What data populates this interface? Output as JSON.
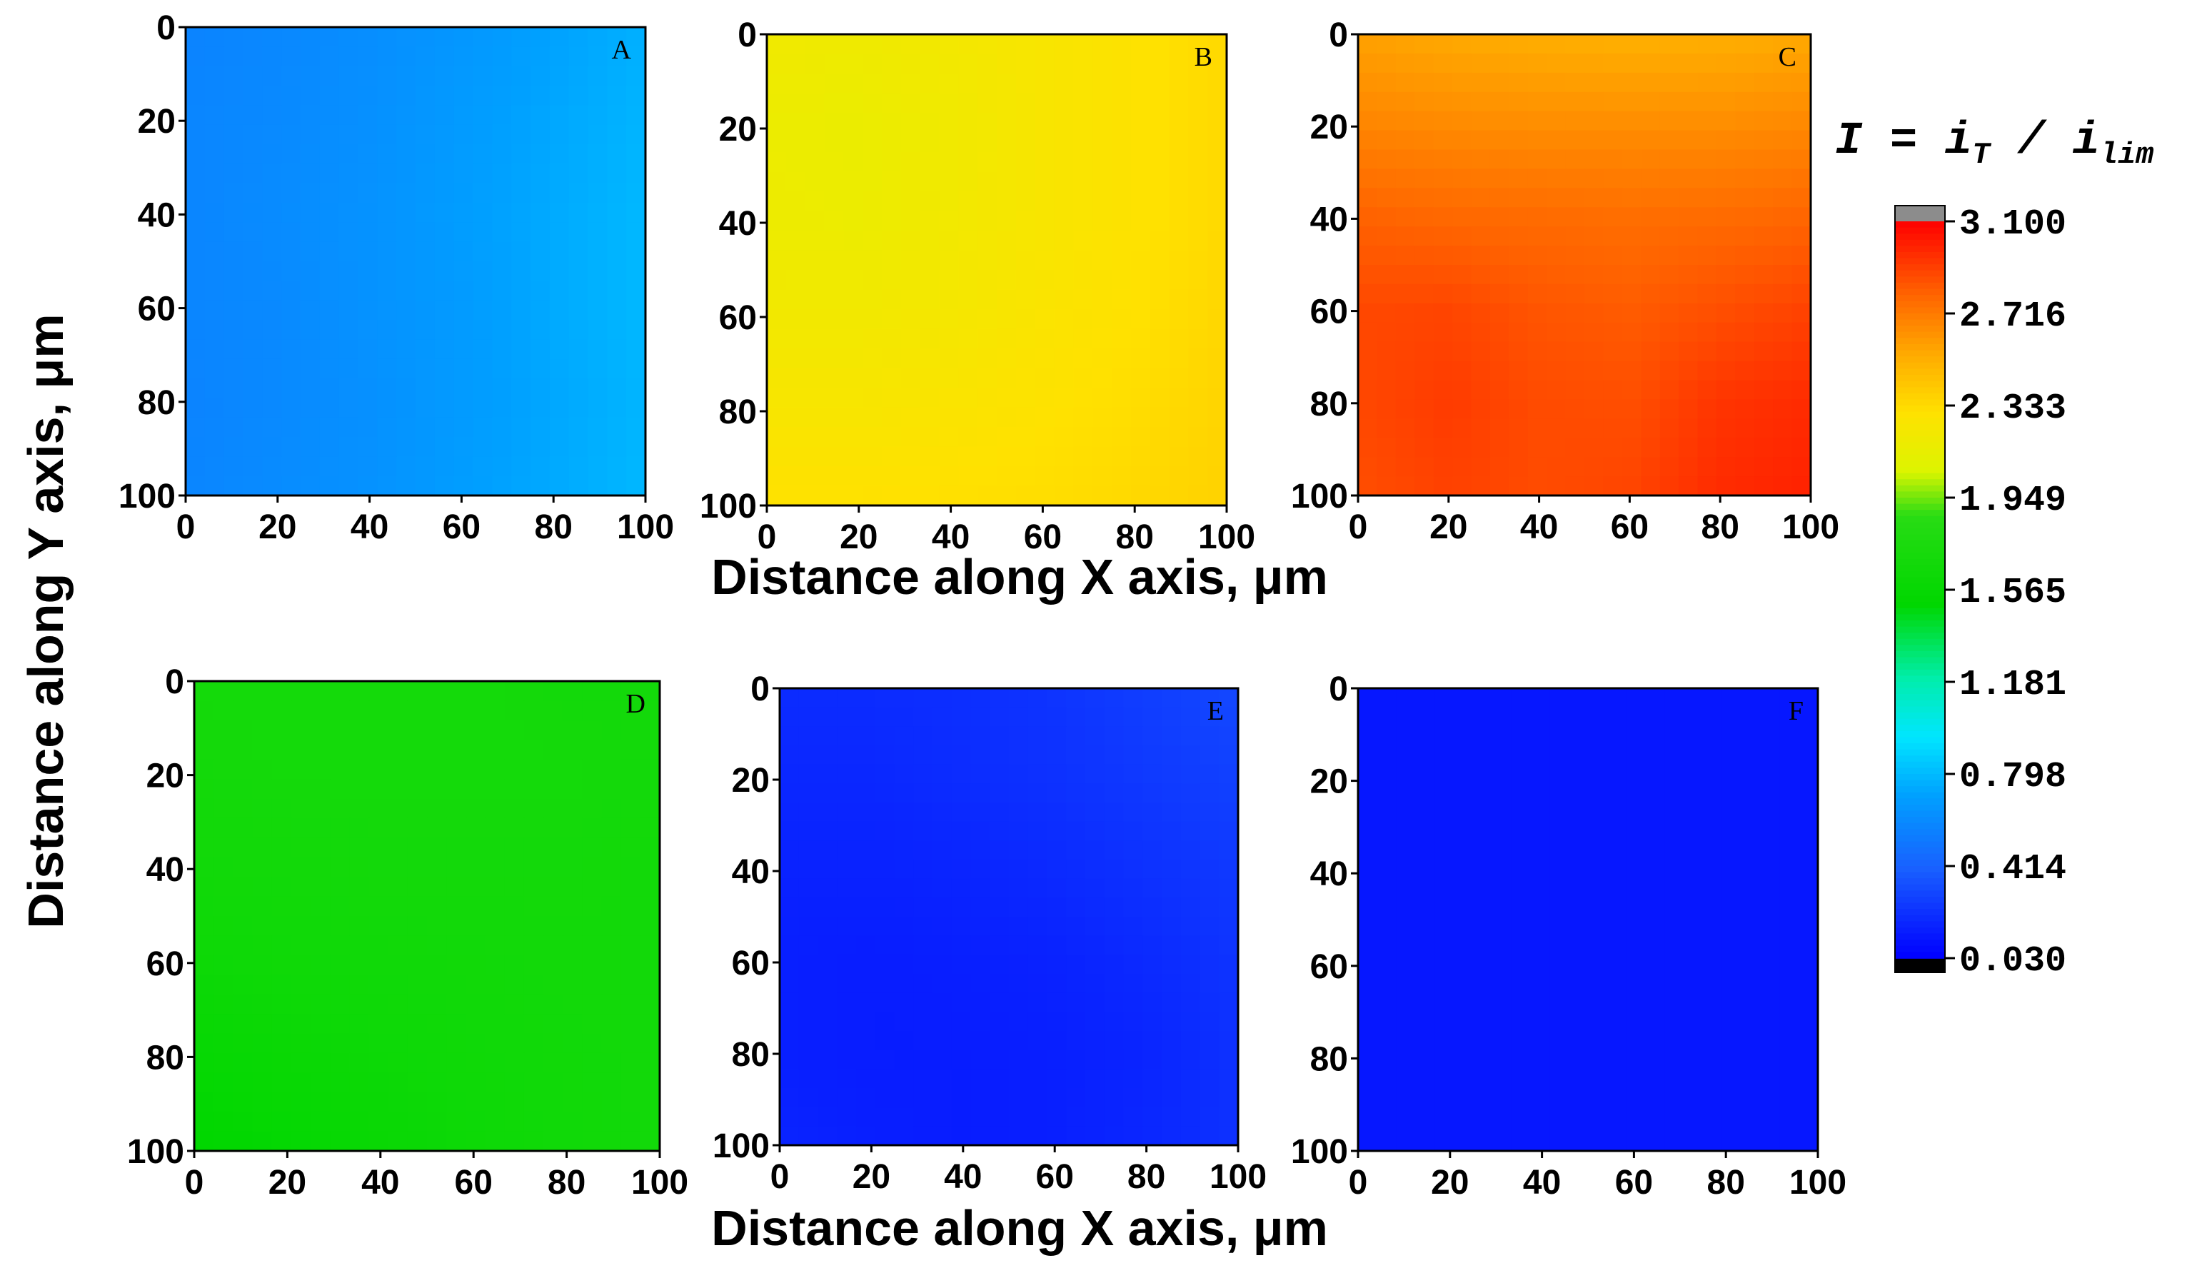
{
  "chart_data": {
    "type": "heatmap",
    "xlabel": "Distance along X axis, μm",
    "ylabel": "Distance along Y axis, μm",
    "x_ticks": [
      "0",
      "20",
      "40",
      "60",
      "80",
      "100"
    ],
    "y_ticks": [
      "0",
      "20",
      "40",
      "60",
      "80",
      "100"
    ],
    "x_range": [
      0,
      100
    ],
    "y_range": [
      0,
      100
    ],
    "colorbar": {
      "title": "I = iT / ilim",
      "title_parts": [
        "I",
        " = ",
        "i",
        "T",
        " / ",
        "i",
        "lim"
      ],
      "range": [
        0.03,
        3.1
      ],
      "ticks": [
        "3.100",
        "2.716",
        "2.333",
        "1.949",
        "1.565",
        "1.181",
        "0.798",
        "0.414",
        "0.030"
      ],
      "over_color": "#8c8c8c",
      "under_color": "#000000"
    },
    "panels": [
      {
        "label": "A",
        "description": "I increases along X from ~0.60 at x=0 to ~0.80 at x=100, with slightly uneven contour boundaries",
        "grid": [
          [
            0.57,
            0.59,
            0.62,
            0.66,
            0.71,
            0.76
          ],
          [
            0.58,
            0.6,
            0.63,
            0.68,
            0.73,
            0.78
          ],
          [
            0.58,
            0.61,
            0.64,
            0.69,
            0.74,
            0.79
          ],
          [
            0.58,
            0.6,
            0.64,
            0.68,
            0.74,
            0.79
          ],
          [
            0.57,
            0.6,
            0.63,
            0.68,
            0.73,
            0.78
          ],
          [
            0.58,
            0.61,
            0.64,
            0.69,
            0.74,
            0.79
          ]
        ]
      },
      {
        "label": "B",
        "description": "I ranges ~2.15 near (10,35) up to ~2.40 along the right and bottom edges",
        "grid": [
          [
            2.2,
            2.19,
            2.22,
            2.25,
            2.29,
            2.34
          ],
          [
            2.17,
            2.16,
            2.2,
            2.25,
            2.29,
            2.34
          ],
          [
            2.18,
            2.17,
            2.21,
            2.25,
            2.29,
            2.34
          ],
          [
            2.21,
            2.21,
            2.23,
            2.27,
            2.3,
            2.35
          ],
          [
            2.25,
            2.25,
            2.27,
            2.29,
            2.32,
            2.36
          ],
          [
            2.3,
            2.3,
            2.31,
            2.32,
            2.34,
            2.37
          ]
        ]
      },
      {
        "label": "C",
        "description": "I ranges ~2.50 along the top edge to ~3.00 in the lower right",
        "grid": [
          [
            2.58,
            2.55,
            2.53,
            2.52,
            2.53,
            2.55
          ],
          [
            2.68,
            2.66,
            2.65,
            2.65,
            2.65,
            2.67
          ],
          [
            2.8,
            2.78,
            2.77,
            2.76,
            2.77,
            2.79
          ],
          [
            2.88,
            2.89,
            2.84,
            2.82,
            2.86,
            2.9
          ],
          [
            2.88,
            2.92,
            2.87,
            2.86,
            2.94,
            2.97
          ],
          [
            2.86,
            2.9,
            2.87,
            2.89,
            2.97,
            3.0
          ]
        ]
      },
      {
        "label": "D",
        "description": "I ranges ~1.68 in the upper region to ~1.50 along the bottom-left edge",
        "grid": [
          [
            1.69,
            1.69,
            1.69,
            1.69,
            1.68,
            1.68
          ],
          [
            1.68,
            1.69,
            1.69,
            1.69,
            1.69,
            1.68
          ],
          [
            1.66,
            1.67,
            1.68,
            1.68,
            1.68,
            1.67
          ],
          [
            1.62,
            1.64,
            1.65,
            1.66,
            1.67,
            1.67
          ],
          [
            1.56,
            1.59,
            1.62,
            1.64,
            1.66,
            1.67
          ],
          [
            1.5,
            1.54,
            1.58,
            1.62,
            1.65,
            1.67
          ]
        ]
      },
      {
        "label": "E",
        "description": "I ranges ~0.13 near the bottom-center to ~0.30 at the top-right corner",
        "grid": [
          [
            0.2,
            0.2,
            0.21,
            0.23,
            0.27,
            0.31
          ],
          [
            0.18,
            0.18,
            0.2,
            0.22,
            0.25,
            0.28
          ],
          [
            0.16,
            0.16,
            0.17,
            0.19,
            0.22,
            0.25
          ],
          [
            0.15,
            0.14,
            0.15,
            0.16,
            0.19,
            0.23
          ],
          [
            0.15,
            0.14,
            0.14,
            0.15,
            0.17,
            0.22
          ],
          [
            0.17,
            0.15,
            0.14,
            0.15,
            0.18,
            0.22
          ]
        ]
      },
      {
        "label": "F",
        "description": "I nearly uniform at ~0.12 across the entire scan area",
        "grid": [
          [
            0.12,
            0.12,
            0.12,
            0.12,
            0.12,
            0.12
          ],
          [
            0.12,
            0.12,
            0.12,
            0.12,
            0.12,
            0.12
          ],
          [
            0.12,
            0.12,
            0.12,
            0.12,
            0.12,
            0.12
          ],
          [
            0.12,
            0.12,
            0.12,
            0.12,
            0.12,
            0.12
          ],
          [
            0.12,
            0.12,
            0.12,
            0.12,
            0.12,
            0.12
          ],
          [
            0.12,
            0.12,
            0.12,
            0.12,
            0.12,
            0.12
          ]
        ]
      }
    ]
  }
}
